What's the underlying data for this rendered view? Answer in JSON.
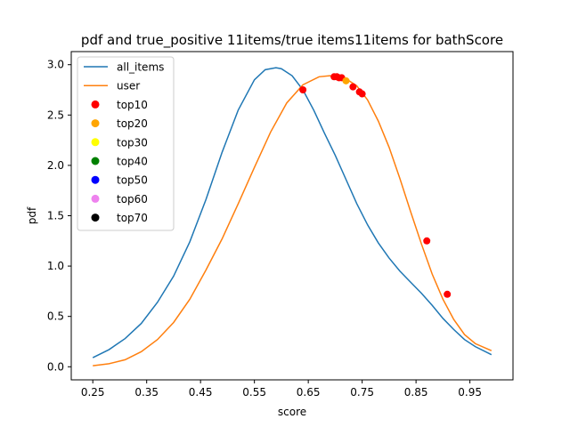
{
  "chart_data": {
    "type": "line",
    "title": "pdf and true_positive 11items/true items11items for bathScore",
    "xlabel": "score",
    "ylabel": "pdf",
    "xlim": [
      0.21,
      1.03
    ],
    "ylim": [
      -0.13,
      3.13
    ],
    "x_ticks": [
      "0.25",
      "0.35",
      "0.45",
      "0.55",
      "0.65",
      "0.75",
      "0.85",
      "0.95"
    ],
    "y_ticks": [
      "0.0",
      "0.5",
      "1.0",
      "1.5",
      "2.0",
      "2.5",
      "3.0"
    ],
    "grid": false,
    "legend_position": "top-left",
    "series": [
      {
        "name": "all_items",
        "kind": "line",
        "color": "#1f77b4",
        "x": [
          0.25,
          0.28,
          0.31,
          0.34,
          0.37,
          0.4,
          0.43,
          0.46,
          0.49,
          0.52,
          0.55,
          0.57,
          0.59,
          0.6,
          0.62,
          0.64,
          0.66,
          0.68,
          0.7,
          0.72,
          0.74,
          0.76,
          0.78,
          0.8,
          0.82,
          0.84,
          0.86,
          0.88,
          0.9,
          0.92,
          0.94,
          0.96,
          0.99
        ],
        "y": [
          0.09,
          0.17,
          0.28,
          0.43,
          0.64,
          0.9,
          1.24,
          1.66,
          2.13,
          2.55,
          2.85,
          2.95,
          2.97,
          2.96,
          2.89,
          2.75,
          2.55,
          2.32,
          2.1,
          1.86,
          1.62,
          1.41,
          1.23,
          1.08,
          0.95,
          0.84,
          0.73,
          0.61,
          0.48,
          0.37,
          0.27,
          0.2,
          0.12
        ]
      },
      {
        "name": "user",
        "kind": "line",
        "color": "#ff7f0e",
        "x": [
          0.25,
          0.28,
          0.31,
          0.34,
          0.37,
          0.4,
          0.43,
          0.46,
          0.49,
          0.52,
          0.55,
          0.58,
          0.61,
          0.64,
          0.67,
          0.69,
          0.7,
          0.72,
          0.74,
          0.76,
          0.78,
          0.8,
          0.82,
          0.84,
          0.86,
          0.88,
          0.9,
          0.92,
          0.94,
          0.96,
          0.99
        ],
        "y": [
          0.01,
          0.03,
          0.07,
          0.15,
          0.27,
          0.44,
          0.67,
          0.96,
          1.27,
          1.62,
          1.98,
          2.33,
          2.62,
          2.8,
          2.88,
          2.89,
          2.88,
          2.86,
          2.79,
          2.65,
          2.44,
          2.18,
          1.87,
          1.54,
          1.22,
          0.92,
          0.67,
          0.47,
          0.32,
          0.23,
          0.16
        ]
      },
      {
        "name": "top10",
        "kind": "scatter",
        "color": "#ff0000",
        "x": [
          0.64,
          0.698,
          0.703,
          0.707,
          0.712,
          0.733,
          0.745,
          0.75,
          0.87,
          0.908
        ],
        "y": [
          2.75,
          2.88,
          2.88,
          2.87,
          2.87,
          2.78,
          2.73,
          2.71,
          1.25,
          0.72
        ]
      },
      {
        "name": "top20",
        "kind": "scatter",
        "color": "#ffa500",
        "x": [
          0.72
        ],
        "y": [
          2.84
        ]
      },
      {
        "name": "top30",
        "kind": "scatter",
        "color": "#ffff00",
        "x": [],
        "y": []
      },
      {
        "name": "top40",
        "kind": "scatter",
        "color": "#008000",
        "x": [],
        "y": []
      },
      {
        "name": "top50",
        "kind": "scatter",
        "color": "#0000ff",
        "x": [],
        "y": []
      },
      {
        "name": "top60",
        "kind": "scatter",
        "color": "#ee82ee",
        "x": [],
        "y": []
      },
      {
        "name": "top70",
        "kind": "scatter",
        "color": "#000000",
        "x": [],
        "y": []
      }
    ]
  }
}
